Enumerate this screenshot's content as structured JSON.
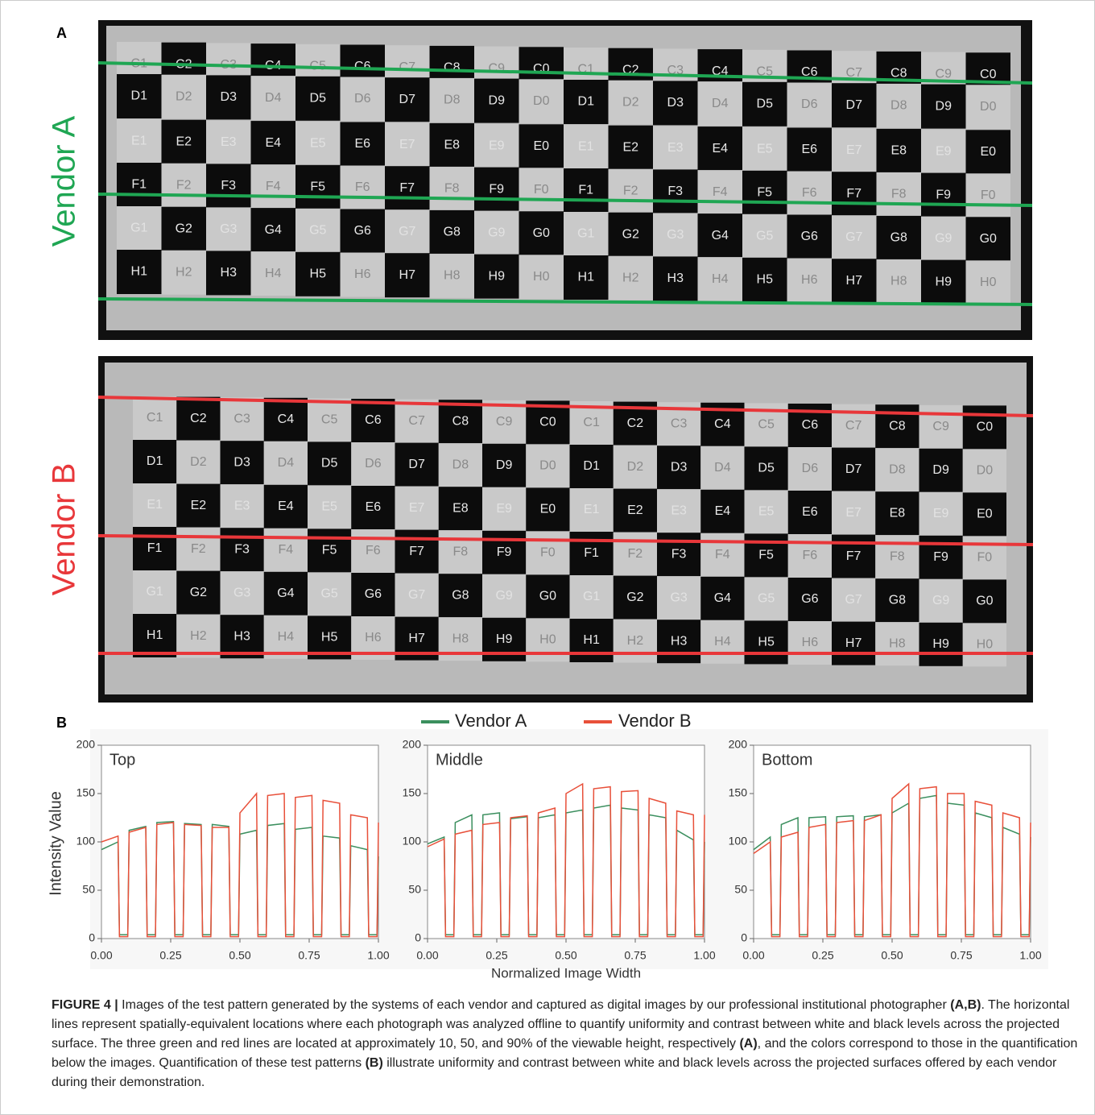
{
  "panel_labels": [
    "A",
    "B"
  ],
  "checkerboard": {
    "rows": [
      [
        "C1",
        "C2",
        "C3",
        "C4",
        "C5",
        "C6",
        "C7",
        "C8",
        "C9",
        "C0",
        "C1",
        "C2",
        "C3",
        "C4",
        "C5",
        "C6",
        "C7",
        "C8",
        "C9",
        "C0"
      ],
      [
        "D1",
        "D2",
        "D3",
        "D4",
        "D5",
        "D6",
        "D7",
        "D8",
        "D9",
        "D0",
        "D1",
        "D2",
        "D3",
        "D4",
        "D5",
        "D6",
        "D7",
        "D8",
        "D9",
        "D0"
      ],
      [
        "E1",
        "E2",
        "E3",
        "E4",
        "E5",
        "E6",
        "E7",
        "E8",
        "E9",
        "E0",
        "E1",
        "E2",
        "E3",
        "E4",
        "E5",
        "E6",
        "E7",
        "E8",
        "E9",
        "E0"
      ],
      [
        "F1",
        "F2",
        "F3",
        "F4",
        "F5",
        "F6",
        "F7",
        "F8",
        "F9",
        "F0",
        "F1",
        "F2",
        "F3",
        "F4",
        "F5",
        "F6",
        "F7",
        "F8",
        "F9",
        "F0"
      ],
      [
        "G1",
        "G2",
        "G3",
        "G4",
        "G5",
        "G6",
        "G7",
        "G8",
        "G9",
        "G0",
        "G1",
        "G2",
        "G3",
        "G4",
        "G5",
        "G6",
        "G7",
        "G8",
        "G9",
        "G0"
      ],
      [
        "H1",
        "H2",
        "H3",
        "H4",
        "H5",
        "H6",
        "H7",
        "H8",
        "H9",
        "H0",
        "H1",
        "H2",
        "H3",
        "H4",
        "H5",
        "H6",
        "H7",
        "H8",
        "H9",
        "H0"
      ]
    ]
  },
  "panel_a": {
    "images": [
      {
        "label": "Vendor A",
        "color": "#1fa653"
      },
      {
        "label": "Vendor B",
        "color": "#e8373a"
      }
    ]
  },
  "chart_data": [
    {
      "type": "line",
      "title": "Top",
      "y_label": "Intensity Value",
      "x": [
        0,
        0.06,
        0.065,
        0.095,
        0.1,
        0.16,
        0.165,
        0.195,
        0.2,
        0.26,
        0.265,
        0.295,
        0.3,
        0.36,
        0.365,
        0.395,
        0.4,
        0.46,
        0.465,
        0.495,
        0.5,
        0.56,
        0.565,
        0.595,
        0.6,
        0.66,
        0.665,
        0.695,
        0.7,
        0.76,
        0.765,
        0.795,
        0.8,
        0.86,
        0.865,
        0.895,
        0.9,
        0.96,
        0.965,
        0.995,
        1.0
      ],
      "series": [
        {
          "name": "Vendor A",
          "color": "#3b8f5e",
          "values": [
            92,
            100,
            4,
            4,
            112,
            116,
            4,
            4,
            120,
            121,
            4,
            4,
            119,
            118,
            4,
            4,
            118,
            116,
            4,
            4,
            108,
            112,
            4,
            4,
            117,
            119,
            4,
            4,
            113,
            115,
            4,
            4,
            106,
            104,
            4,
            4,
            96,
            92,
            4,
            4,
            85
          ]
        },
        {
          "name": "Vendor B",
          "color": "#e8503a",
          "values": [
            100,
            106,
            2,
            2,
            110,
            115,
            2,
            2,
            118,
            120,
            2,
            2,
            118,
            117,
            2,
            2,
            115,
            115,
            2,
            2,
            130,
            150,
            2,
            2,
            148,
            150,
            2,
            2,
            146,
            148,
            2,
            2,
            143,
            140,
            2,
            2,
            128,
            125,
            2,
            2,
            120
          ]
        }
      ],
      "xlim": [
        0,
        1
      ],
      "ylim": [
        0,
        200
      ],
      "yticks": [
        0,
        50,
        100,
        150,
        200
      ],
      "xticks": [
        {
          "value": 0,
          "label": "0.00"
        },
        {
          "value": 0.25,
          "label": "0.25"
        },
        {
          "value": 0.5,
          "label": "0.50"
        },
        {
          "value": 0.75,
          "label": "0.75"
        },
        {
          "value": 1,
          "label": "1.00"
        }
      ]
    },
    {
      "type": "line",
      "title": "Middle",
      "x_label": "Normalized Image Width",
      "x": [
        0,
        0.06,
        0.065,
        0.095,
        0.1,
        0.16,
        0.165,
        0.195,
        0.2,
        0.26,
        0.265,
        0.295,
        0.3,
        0.36,
        0.365,
        0.395,
        0.4,
        0.46,
        0.465,
        0.495,
        0.5,
        0.56,
        0.565,
        0.595,
        0.6,
        0.66,
        0.665,
        0.695,
        0.7,
        0.76,
        0.765,
        0.795,
        0.8,
        0.86,
        0.865,
        0.895,
        0.9,
        0.96,
        0.965,
        0.995,
        1.0
      ],
      "series": [
        {
          "name": "Vendor A",
          "color": "#3b8f5e",
          "values": [
            98,
            105,
            4,
            4,
            120,
            128,
            4,
            4,
            128,
            130,
            4,
            4,
            124,
            126,
            4,
            4,
            125,
            128,
            4,
            4,
            130,
            133,
            4,
            4,
            135,
            138,
            4,
            4,
            135,
            133,
            4,
            4,
            128,
            125,
            4,
            4,
            112,
            102,
            4,
            4,
            100
          ]
        },
        {
          "name": "Vendor B",
          "color": "#e8503a",
          "values": [
            95,
            103,
            2,
            2,
            108,
            112,
            2,
            2,
            118,
            120,
            2,
            2,
            125,
            127,
            2,
            2,
            130,
            135,
            2,
            2,
            150,
            160,
            2,
            2,
            155,
            157,
            2,
            2,
            152,
            153,
            2,
            2,
            145,
            140,
            2,
            2,
            132,
            128,
            2,
            2,
            128
          ]
        }
      ],
      "xlim": [
        0,
        1
      ],
      "ylim": [
        0,
        200
      ],
      "yticks": [
        0,
        50,
        100,
        150,
        200
      ],
      "xticks": [
        {
          "value": 0,
          "label": "0.00"
        },
        {
          "value": 0.25,
          "label": "0.25"
        },
        {
          "value": 0.5,
          "label": "0.50"
        },
        {
          "value": 0.75,
          "label": "0.75"
        },
        {
          "value": 1,
          "label": "1.00"
        }
      ]
    },
    {
      "type": "line",
      "title": "Bottom",
      "x": [
        0,
        0.06,
        0.065,
        0.095,
        0.1,
        0.16,
        0.165,
        0.195,
        0.2,
        0.26,
        0.265,
        0.295,
        0.3,
        0.36,
        0.365,
        0.395,
        0.4,
        0.46,
        0.465,
        0.495,
        0.5,
        0.56,
        0.565,
        0.595,
        0.6,
        0.66,
        0.665,
        0.695,
        0.7,
        0.76,
        0.765,
        0.795,
        0.8,
        0.86,
        0.865,
        0.895,
        0.9,
        0.96,
        0.965,
        0.995,
        1.0
      ],
      "series": [
        {
          "name": "Vendor A",
          "color": "#3b8f5e",
          "values": [
            92,
            105,
            4,
            4,
            118,
            125,
            4,
            4,
            125,
            126,
            4,
            4,
            126,
            127,
            4,
            4,
            126,
            128,
            4,
            4,
            130,
            140,
            4,
            4,
            145,
            148,
            4,
            4,
            140,
            138,
            4,
            4,
            130,
            125,
            4,
            4,
            115,
            108,
            4,
            4,
            105
          ]
        },
        {
          "name": "Vendor B",
          "color": "#e8503a",
          "values": [
            88,
            100,
            2,
            2,
            105,
            110,
            2,
            2,
            115,
            118,
            2,
            2,
            120,
            122,
            2,
            2,
            122,
            128,
            2,
            2,
            145,
            160,
            2,
            2,
            155,
            157,
            2,
            2,
            150,
            150,
            2,
            2,
            142,
            138,
            2,
            2,
            130,
            125,
            2,
            2,
            120
          ]
        }
      ],
      "xlim": [
        0,
        1
      ],
      "ylim": [
        0,
        200
      ],
      "yticks": [
        0,
        50,
        100,
        150,
        200
      ],
      "xticks": [
        {
          "value": 0,
          "label": "0.00"
        },
        {
          "value": 0.25,
          "label": "0.25"
        },
        {
          "value": 0.5,
          "label": "0.50"
        },
        {
          "value": 0.75,
          "label": "0.75"
        },
        {
          "value": 1,
          "label": "1.00"
        }
      ]
    }
  ],
  "caption": {
    "parts": [
      {
        "text": "FIGURE 4 |",
        "bold": true
      },
      {
        "text": " Images of the test pattern generated by the systems of each vendor and captured as digital images by our professional institutional photographer ",
        "bold": false
      },
      {
        "text": "(A,B)",
        "bold": true
      },
      {
        "text": ". The horizontal lines represent spatially-equivalent locations where each photograph was analyzed offline to quantify uniformity and contrast between white and black levels across the projected surface. The three green and red lines are located at approximately 10, 50, and 90% of the viewable height, respectively ",
        "bold": false
      },
      {
        "text": "(A)",
        "bold": true
      },
      {
        "text": ", and the colors correspond to those in the quantification below the images. Quantification of these test patterns ",
        "bold": false
      },
      {
        "text": "(B)",
        "bold": true
      },
      {
        "text": " illustrate uniformity and contrast between white and black levels across the projected surfaces offered by each vendor during their demonstration.",
        "bold": false
      }
    ]
  }
}
